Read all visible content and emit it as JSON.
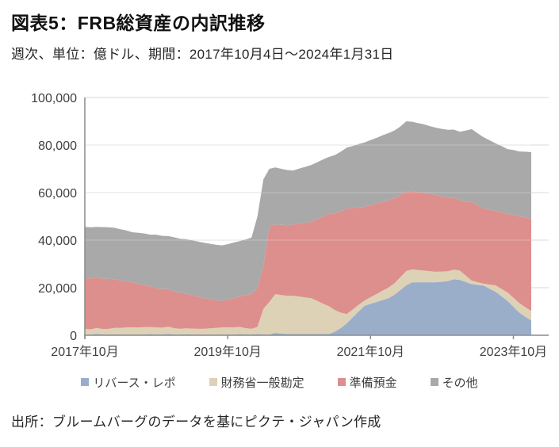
{
  "header": {
    "title": "図表5：FRB総資産の内訳推移",
    "subtitle": "週次、単位：億ドル、期間：2017年10月4日～2024年1月31日"
  },
  "footer": {
    "source": "出所：ブルームバーグのデータを基にピクテ・ジャパン作成"
  },
  "chart_data": {
    "type": "area",
    "stacked": true,
    "title": "図表5：FRB総資産の内訳推移",
    "xlabel": "",
    "ylabel": "億ドル",
    "ylim": [
      0,
      100000
    ],
    "grid": "horizontal",
    "legend_position": "bottom",
    "x": [
      "2017-10",
      "2017-11",
      "2017-12",
      "2018-01",
      "2018-02",
      "2018-03",
      "2018-04",
      "2018-05",
      "2018-06",
      "2018-07",
      "2018-08",
      "2018-09",
      "2018-10",
      "2018-11",
      "2018-12",
      "2019-01",
      "2019-02",
      "2019-03",
      "2019-04",
      "2019-05",
      "2019-06",
      "2019-07",
      "2019-08",
      "2019-09",
      "2019-10",
      "2019-11",
      "2019-12",
      "2020-01",
      "2020-02",
      "2020-03",
      "2020-04",
      "2020-05",
      "2020-06",
      "2020-07",
      "2020-08",
      "2020-09",
      "2020-10",
      "2020-11",
      "2020-12",
      "2021-01",
      "2021-02",
      "2021-03",
      "2021-04",
      "2021-05",
      "2021-06",
      "2021-07",
      "2021-08",
      "2021-09",
      "2021-10",
      "2021-11",
      "2021-12",
      "2022-01",
      "2022-02",
      "2022-03",
      "2022-04",
      "2022-05",
      "2022-06",
      "2022-07",
      "2022-08",
      "2022-09",
      "2022-10",
      "2022-11",
      "2022-12",
      "2023-01",
      "2023-02",
      "2023-03",
      "2023-04",
      "2023-05",
      "2023-06",
      "2023-07",
      "2023-08",
      "2023-09",
      "2023-10",
      "2023-11",
      "2023-12",
      "2024-01"
    ],
    "x_ticks": [
      {
        "index": 0,
        "label": "2017年10月"
      },
      {
        "index": 24,
        "label": "2019年10月"
      },
      {
        "index": 48,
        "label": "2021年10月"
      },
      {
        "index": 72,
        "label": "2023年10月"
      }
    ],
    "y_ticks": [
      {
        "value": 0,
        "label": "0"
      },
      {
        "value": 20000,
        "label": "20,000"
      },
      {
        "value": 40000,
        "label": "40,000"
      },
      {
        "value": 60000,
        "label": "60,000"
      },
      {
        "value": 80000,
        "label": "80,000"
      },
      {
        "value": 100000,
        "label": "100,000"
      }
    ],
    "series": [
      {
        "name": "リバース・レポ",
        "color": "#9aaec9",
        "values": [
          300,
          300,
          600,
          300,
          300,
          400,
          300,
          300,
          300,
          300,
          300,
          500,
          300,
          300,
          600,
          300,
          300,
          400,
          300,
          300,
          300,
          300,
          300,
          300,
          300,
          300,
          500,
          300,
          300,
          500,
          300,
          300,
          1000,
          700,
          500,
          500,
          500,
          500,
          500,
          500,
          500,
          500,
          1500,
          3000,
          5000,
          7500,
          10000,
          12400,
          13200,
          14000,
          14800,
          15600,
          17000,
          19000,
          21000,
          22300,
          22300,
          22300,
          22300,
          22300,
          22500,
          22800,
          23600,
          23300,
          22400,
          21500,
          21200,
          20900,
          19600,
          18300,
          16400,
          14500,
          12000,
          9500,
          7800,
          6200
        ]
      },
      {
        "name": "財務省一般勘定",
        "color": "#ddd2b6",
        "values": [
          2300,
          2200,
          2500,
          2300,
          2400,
          2700,
          2800,
          3000,
          3000,
          3000,
          3100,
          2900,
          3000,
          2900,
          3000,
          2700,
          2400,
          2500,
          2500,
          2400,
          2400,
          2600,
          2800,
          3000,
          3000,
          3000,
          3000,
          2700,
          2400,
          3000,
          10800,
          13700,
          16300,
          16200,
          16100,
          16100,
          15800,
          15400,
          15100,
          14000,
          12800,
          11700,
          9100,
          6500,
          3900,
          3300,
          2800,
          2200,
          2800,
          3300,
          3900,
          4400,
          4800,
          5400,
          6000,
          5400,
          5100,
          4900,
          4600,
          4400,
          4300,
          4100,
          4000,
          3900,
          2700,
          1500,
          1100,
          800,
          1700,
          2700,
          3100,
          3500,
          3800,
          4000,
          4000,
          4000
        ]
      },
      {
        "name": "準備預金",
        "color": "#dd8f8d",
        "values": [
          21400,
          21400,
          21100,
          21200,
          21000,
          20500,
          20000,
          19400,
          18900,
          18300,
          17700,
          17100,
          16500,
          16200,
          15800,
          15500,
          15100,
          14600,
          14000,
          13500,
          12900,
          12300,
          11600,
          11100,
          11700,
          12300,
          12800,
          13800,
          14600,
          16500,
          17900,
          31600,
          29300,
          29500,
          29700,
          30000,
          30700,
          31400,
          32100,
          34300,
          36600,
          38800,
          40700,
          42600,
          44400,
          42700,
          41000,
          39400,
          38700,
          38000,
          37400,
          36700,
          35800,
          34600,
          33500,
          33000,
          32800,
          32700,
          32500,
          32300,
          31600,
          30900,
          30200,
          29500,
          31200,
          33000,
          32300,
          31600,
          31500,
          31300,
          32200,
          33000,
          34800,
          36500,
          37700,
          38800
        ]
      },
      {
        "name": "その他",
        "color": "#a9a9a9",
        "values": [
          21600,
          21500,
          21400,
          21700,
          21700,
          21600,
          21500,
          21400,
          21100,
          21500,
          21700,
          21800,
          22500,
          22400,
          22300,
          22700,
          22800,
          22900,
          23100,
          23200,
          23300,
          23300,
          23400,
          23400,
          23300,
          23400,
          23300,
          23500,
          23800,
          30000,
          36600,
          24400,
          24000,
          23600,
          23200,
          22700,
          23100,
          23500,
          23900,
          23900,
          24000,
          24000,
          24500,
          25100,
          25600,
          26100,
          26600,
          27100,
          27400,
          27700,
          28000,
          28300,
          28500,
          28800,
          29500,
          29100,
          29000,
          28800,
          28500,
          28300,
          28400,
          28600,
          28700,
          28900,
          29800,
          30700,
          30300,
          30000,
          29200,
          28400,
          27900,
          27300,
          27300,
          27300,
          27700,
          28000
        ]
      }
    ]
  }
}
